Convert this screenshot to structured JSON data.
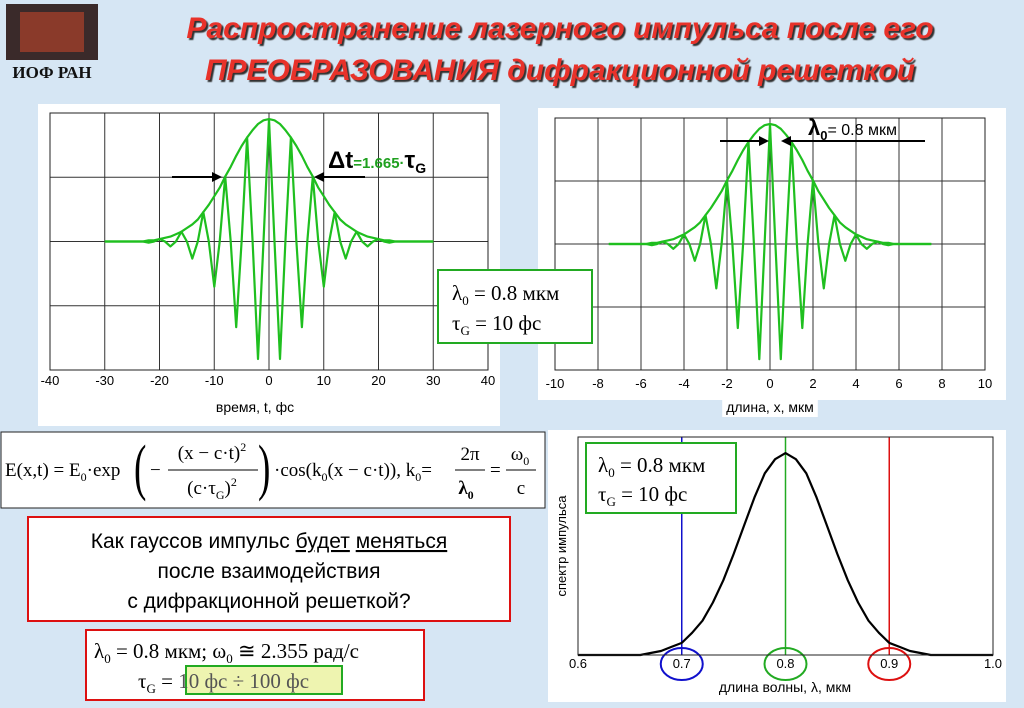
{
  "header": {
    "logo_text": "ИОФ РАН",
    "title_line1": "Распространение лазерного импульса после его",
    "title_line2": "ПРЕОБРАЗОВАНИЯ дифракционной решеткой"
  },
  "chart_data": [
    {
      "type": "line",
      "x_label": "время, t, фс",
      "x": [
        -30,
        -29,
        -28,
        -27,
        -26,
        -25,
        -24,
        -23,
        -22,
        -21,
        -20,
        -19,
        -18,
        -17,
        -16,
        -15,
        -14,
        -13,
        -12,
        -11,
        -10,
        -9,
        -8,
        -7,
        -6,
        -5,
        -4,
        -3,
        -2,
        -1,
        0,
        1,
        2,
        3,
        4,
        5,
        6,
        7,
        8,
        9,
        10,
        11,
        12,
        13,
        14,
        15,
        16,
        17,
        18,
        19,
        20,
        21,
        22,
        23,
        24,
        25,
        26,
        27,
        28,
        29,
        30
      ],
      "xlim": [
        -40,
        40
      ],
      "xticks": [
        -40,
        -30,
        -20,
        -10,
        0,
        10,
        20,
        30,
        40
      ],
      "ylim": [
        -1.05,
        1.05
      ],
      "grid": true,
      "series": [
        {
          "color": "#1fbf1f",
          "values": [
            0,
            0,
            0,
            0,
            0,
            0,
            0,
            0,
            -0.01,
            0,
            0.02,
            0,
            -0.04,
            0,
            0.08,
            0,
            -0.14,
            0,
            0.24,
            0,
            -0.37,
            0,
            0.53,
            0,
            -0.7,
            0,
            0.85,
            0,
            -0.96,
            0,
            1,
            0,
            -0.96,
            0,
            0.85,
            0,
            -0.7,
            0,
            0.53,
            0,
            -0.37,
            0,
            0.24,
            0,
            -0.14,
            0,
            0.08,
            0,
            -0.04,
            0,
            0.02,
            0,
            -0.01,
            0,
            0,
            0,
            0,
            0,
            0,
            0,
            0
          ]
        },
        {
          "color": "#1fbf1f",
          "values": [
            0,
            0,
            0,
            0,
            0,
            0,
            0,
            0,
            0.01,
            0.01,
            0.02,
            0.03,
            0.04,
            0.06,
            0.08,
            0.11,
            0.14,
            0.18,
            0.24,
            0.3,
            0.37,
            0.44,
            0.53,
            0.61,
            0.7,
            0.78,
            0.85,
            0.91,
            0.96,
            0.99,
            1,
            0.99,
            0.96,
            0.91,
            0.85,
            0.78,
            0.7,
            0.61,
            0.53,
            0.44,
            0.37,
            0.3,
            0.24,
            0.18,
            0.14,
            0.11,
            0.08,
            0.06,
            0.04,
            0.03,
            0.02,
            0.01,
            0.01,
            0,
            0,
            0,
            0,
            0,
            0,
            0,
            0
          ]
        }
      ],
      "annotation": [
        "Δt",
        "=1.665·",
        "τ",
        "G"
      ],
      "params": [
        {
          "symbol": "λ",
          "sub": "0",
          "text": " = 0.8 мкм"
        },
        {
          "symbol": "τ",
          "sub": "G",
          "text": " = 10 фс"
        }
      ]
    },
    {
      "type": "line",
      "x_label": "длина, x, мкм",
      "x": [
        -7.5,
        -7.25,
        -7,
        -6.75,
        -6.5,
        -6.25,
        -6,
        -5.75,
        -5.5,
        -5.25,
        -5,
        -4.75,
        -4.5,
        -4.25,
        -4,
        -3.75,
        -3.5,
        -3.25,
        -3,
        -2.75,
        -2.5,
        -2.25,
        -2,
        -1.75,
        -1.5,
        -1.25,
        -1,
        -0.75,
        -0.5,
        -0.25,
        0,
        0.25,
        0.5,
        0.75,
        1,
        1.25,
        1.5,
        1.75,
        2,
        2.25,
        2.5,
        2.75,
        3,
        3.25,
        3.5,
        3.75,
        4,
        4.25,
        4.5,
        4.75,
        5,
        5.25,
        5.5,
        5.75,
        6,
        6.25,
        6.5,
        6.75,
        7,
        7.25,
        7.5
      ],
      "xlim": [
        -10,
        10
      ],
      "xticks": [
        -10,
        -8,
        -6,
        -4,
        -2,
        0,
        2,
        4,
        6,
        8,
        10
      ],
      "ylim": [
        -1.05,
        1.05
      ],
      "grid": true,
      "series": [
        {
          "color": "#1fbf1f",
          "values": [
            0,
            0,
            0,
            0,
            0,
            0,
            0,
            0,
            -0.01,
            0,
            0.02,
            0,
            -0.04,
            0,
            0.08,
            0,
            -0.14,
            0,
            0.24,
            0,
            -0.37,
            0,
            0.53,
            0,
            -0.7,
            0,
            0.85,
            0,
            -0.96,
            0,
            1,
            0,
            -0.96,
            0,
            0.85,
            0,
            -0.7,
            0,
            0.53,
            0,
            -0.37,
            0,
            0.24,
            0,
            -0.14,
            0,
            0.08,
            0,
            -0.04,
            0,
            0.02,
            0,
            -0.01,
            0,
            0,
            0,
            0,
            0,
            0,
            0,
            0
          ]
        },
        {
          "color": "#1fbf1f",
          "values": [
            0,
            0,
            0,
            0,
            0,
            0,
            0,
            0,
            0.01,
            0.01,
            0.02,
            0.03,
            0.04,
            0.06,
            0.08,
            0.11,
            0.14,
            0.18,
            0.24,
            0.3,
            0.37,
            0.44,
            0.53,
            0.61,
            0.7,
            0.78,
            0.85,
            0.91,
            0.96,
            0.99,
            1,
            0.99,
            0.96,
            0.91,
            0.85,
            0.78,
            0.7,
            0.61,
            0.53,
            0.44,
            0.37,
            0.3,
            0.24,
            0.18,
            0.14,
            0.11,
            0.08,
            0.06,
            0.04,
            0.03,
            0.02,
            0.01,
            0.01,
            0,
            0,
            0,
            0,
            0,
            0,
            0,
            0
          ]
        }
      ],
      "annotation": [
        "λ",
        "0",
        "= 0.8 мкм"
      ]
    },
    {
      "type": "line",
      "x_label": "длина волны, λ, мкм",
      "y_label": "спектр импульса",
      "x": [
        0.6,
        0.61,
        0.62,
        0.63,
        0.64,
        0.65,
        0.66,
        0.67,
        0.68,
        0.69,
        0.7,
        0.71,
        0.72,
        0.73,
        0.74,
        0.75,
        0.76,
        0.77,
        0.78,
        0.79,
        0.8,
        0.81,
        0.82,
        0.83,
        0.84,
        0.85,
        0.86,
        0.87,
        0.88,
        0.89,
        0.9,
        0.91,
        0.92,
        0.93,
        0.94,
        0.95,
        0.96,
        0.97,
        0.98,
        0.99,
        1
      ],
      "xlim": [
        0.6,
        1
      ],
      "xticks": [
        0.6,
        0.7,
        0.8,
        0.9,
        {
          "value": 1,
          "label": "1.0"
        }
      ],
      "ylim": [
        0,
        1.08
      ],
      "grid": false,
      "series": [
        {
          "color": "#000000",
          "values": [
            0,
            0,
            0,
            0,
            0,
            0,
            0,
            0.01,
            0.02,
            0.04,
            0.06,
            0.11,
            0.17,
            0.26,
            0.37,
            0.5,
            0.64,
            0.78,
            0.9,
            0.97,
            1,
            0.97,
            0.9,
            0.78,
            0.64,
            0.5,
            0.37,
            0.26,
            0.17,
            0.11,
            0.06,
            0.04,
            0.02,
            0.01,
            0,
            0,
            0,
            0,
            0,
            0,
            0
          ]
        }
      ],
      "markers": [
        {
          "x": 0.7,
          "color": "#1010cc"
        },
        {
          "x": 0.8,
          "color": "#22aa22"
        },
        {
          "x": 0.9,
          "color": "#dd1010"
        }
      ],
      "params": [
        {
          "symbol": "λ",
          "sub": "0",
          "text": " = 0.8 мкм"
        },
        {
          "symbol": "τ",
          "sub": "G",
          "text": " = 10 фс"
        }
      ]
    }
  ],
  "formula": {
    "lhs": "E(x,t) = E",
    "sub0": "0",
    "exp": "·exp",
    "minus": "−",
    "num": "(x − c·t)",
    "sq": "2",
    "den": "(c·τ",
    "den_sub": "G",
    "den_close": ")",
    "cos": "·cos(k",
    "arg_rest": "(x − c·t)), k",
    "eq": "=",
    "f2_num": "2π",
    "f2_den": "λ",
    "f3_num": "ω",
    "f3_den": "c"
  },
  "question": {
    "line1": [
      "Как гауссов импульс",
      "будет",
      "меняться"
    ],
    "line2": "после взаимодействия",
    "line3": "с дифракционной решеткой?"
  },
  "bottom_box": {
    "l1": [
      "λ",
      "0",
      " = 0.8 мкм; ω",
      "0",
      " ≅ 2.355 рад/с"
    ],
    "l2": [
      "τ",
      "G",
      " = "
    ],
    "range": "10 фс ÷ 100 фс"
  }
}
